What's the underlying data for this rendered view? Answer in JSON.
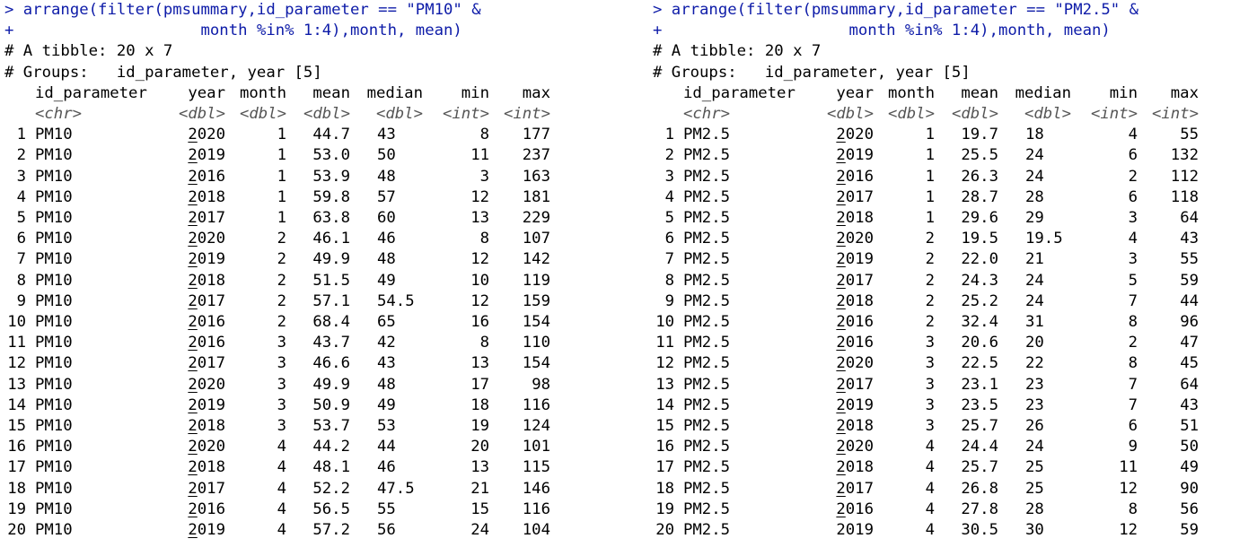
{
  "panels": [
    {
      "cmd1": "> arrange(filter(pmsummary,id_parameter == \"PM10\" &",
      "cmd2": "+                    month %in% 1:4),month, mean)",
      "tibble": "# A tibble: 20 x 7",
      "groups": "# Groups:   id_parameter, year [5]",
      "headers": [
        "id_parameter",
        "year",
        "month",
        "mean",
        "median",
        "min",
        "max"
      ],
      "types": [
        "<chr>",
        "<dbl>",
        "<dbl>",
        "<dbl>",
        "<dbl>",
        "<int>",
        "<int>"
      ],
      "rows": [
        [
          "1",
          "PM10",
          "2",
          "020",
          "1",
          "44.7",
          "43",
          "8",
          "177"
        ],
        [
          "2",
          "PM10",
          "2",
          "019",
          "1",
          "53.0",
          "50",
          "11",
          "237"
        ],
        [
          "3",
          "PM10",
          "2",
          "016",
          "1",
          "53.9",
          "48",
          "3",
          "163"
        ],
        [
          "4",
          "PM10",
          "2",
          "018",
          "1",
          "59.8",
          "57",
          "12",
          "181"
        ],
        [
          "5",
          "PM10",
          "2",
          "017",
          "1",
          "63.8",
          "60",
          "13",
          "229"
        ],
        [
          "6",
          "PM10",
          "2",
          "020",
          "2",
          "46.1",
          "46",
          "8",
          "107"
        ],
        [
          "7",
          "PM10",
          "2",
          "019",
          "2",
          "49.9",
          "48",
          "12",
          "142"
        ],
        [
          "8",
          "PM10",
          "2",
          "018",
          "2",
          "51.5",
          "49",
          "10",
          "119"
        ],
        [
          "9",
          "PM10",
          "2",
          "017",
          "2",
          "57.1",
          "54.5",
          "12",
          "159"
        ],
        [
          "10",
          "PM10",
          "2",
          "016",
          "2",
          "68.4",
          "65",
          "16",
          "154"
        ],
        [
          "11",
          "PM10",
          "2",
          "016",
          "3",
          "43.7",
          "42",
          "8",
          "110"
        ],
        [
          "12",
          "PM10",
          "2",
          "017",
          "3",
          "46.6",
          "43",
          "13",
          "154"
        ],
        [
          "13",
          "PM10",
          "2",
          "020",
          "3",
          "49.9",
          "48",
          "17",
          "98"
        ],
        [
          "14",
          "PM10",
          "2",
          "019",
          "3",
          "50.9",
          "49",
          "18",
          "116"
        ],
        [
          "15",
          "PM10",
          "2",
          "018",
          "3",
          "53.7",
          "53",
          "19",
          "124"
        ],
        [
          "16",
          "PM10",
          "2",
          "020",
          "4",
          "44.2",
          "44",
          "20",
          "101"
        ],
        [
          "17",
          "PM10",
          "2",
          "018",
          "4",
          "48.1",
          "46",
          "13",
          "115"
        ],
        [
          "18",
          "PM10",
          "2",
          "017",
          "4",
          "52.2",
          "47.5",
          "21",
          "146"
        ],
        [
          "19",
          "PM10",
          "2",
          "016",
          "4",
          "56.5",
          "55",
          "15",
          "116"
        ],
        [
          "20",
          "PM10",
          "2",
          "019",
          "4",
          "57.2",
          "56",
          "24",
          "104"
        ]
      ]
    },
    {
      "cmd1": "> arrange(filter(pmsummary,id_parameter == \"PM2.5\" &",
      "cmd2": "+                    month %in% 1:4),month, mean)",
      "tibble": "# A tibble: 20 x 7",
      "groups": "# Groups:   id_parameter, year [5]",
      "headers": [
        "id_parameter",
        "year",
        "month",
        "mean",
        "median",
        "min",
        "max"
      ],
      "types": [
        "<chr>",
        "<dbl>",
        "<dbl>",
        "<dbl>",
        "<dbl>",
        "<int>",
        "<int>"
      ],
      "rows": [
        [
          "1",
          "PM2.5",
          "2",
          "020",
          "1",
          "19.7",
          "18",
          "4",
          "55"
        ],
        [
          "2",
          "PM2.5",
          "2",
          "019",
          "1",
          "25.5",
          "24",
          "6",
          "132"
        ],
        [
          "3",
          "PM2.5",
          "2",
          "016",
          "1",
          "26.3",
          "24",
          "2",
          "112"
        ],
        [
          "4",
          "PM2.5",
          "2",
          "017",
          "1",
          "28.7",
          "28",
          "6",
          "118"
        ],
        [
          "5",
          "PM2.5",
          "2",
          "018",
          "1",
          "29.6",
          "29",
          "3",
          "64"
        ],
        [
          "6",
          "PM2.5",
          "2",
          "020",
          "2",
          "19.5",
          "19.5",
          "4",
          "43"
        ],
        [
          "7",
          "PM2.5",
          "2",
          "019",
          "2",
          "22.0",
          "21",
          "3",
          "55"
        ],
        [
          "8",
          "PM2.5",
          "2",
          "017",
          "2",
          "24.3",
          "24",
          "5",
          "59"
        ],
        [
          "9",
          "PM2.5",
          "2",
          "018",
          "2",
          "25.2",
          "24",
          "7",
          "44"
        ],
        [
          "10",
          "PM2.5",
          "2",
          "016",
          "2",
          "32.4",
          "31",
          "8",
          "96"
        ],
        [
          "11",
          "PM2.5",
          "2",
          "016",
          "3",
          "20.6",
          "20",
          "2",
          "47"
        ],
        [
          "12",
          "PM2.5",
          "2",
          "020",
          "3",
          "22.5",
          "22",
          "8",
          "45"
        ],
        [
          "13",
          "PM2.5",
          "2",
          "017",
          "3",
          "23.1",
          "23",
          "7",
          "64"
        ],
        [
          "14",
          "PM2.5",
          "2",
          "019",
          "3",
          "23.5",
          "23",
          "7",
          "43"
        ],
        [
          "15",
          "PM2.5",
          "2",
          "018",
          "3",
          "25.7",
          "26",
          "6",
          "51"
        ],
        [
          "16",
          "PM2.5",
          "2",
          "020",
          "4",
          "24.4",
          "24",
          "9",
          "50"
        ],
        [
          "17",
          "PM2.5",
          "2",
          "018",
          "4",
          "25.7",
          "25",
          "11",
          "49"
        ],
        [
          "18",
          "PM2.5",
          "2",
          "017",
          "4",
          "26.8",
          "25",
          "12",
          "90"
        ],
        [
          "19",
          "PM2.5",
          "2",
          "016",
          "4",
          "27.8",
          "28",
          "8",
          "56"
        ],
        [
          "20",
          "PM2.5",
          "",
          "2019",
          "4",
          "30.5",
          "30",
          "12",
          "59"
        ]
      ]
    }
  ]
}
